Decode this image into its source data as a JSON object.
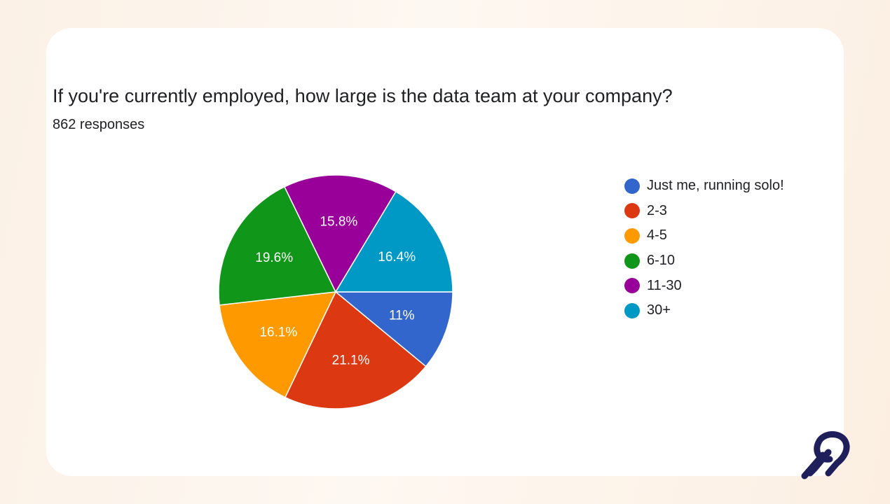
{
  "header": {
    "question": "If you're currently employed, how large is the data team at your company?",
    "responses": "862 responses"
  },
  "chart_data": {
    "type": "pie",
    "title": "If you're currently employed, how large is the data team at your company?",
    "subtitle": "862 responses",
    "legend_position": "right",
    "slices": [
      {
        "label": "Just me, running solo!",
        "value": 11,
        "display": "11%",
        "color": "#3366cc"
      },
      {
        "label": "2-3",
        "value": 21.1,
        "display": "21.1%",
        "color": "#dc3912"
      },
      {
        "label": "4-5",
        "value": 16.1,
        "display": "16.1%",
        "color": "#ff9900"
      },
      {
        "label": "6-10",
        "value": 19.6,
        "display": "19.6%",
        "color": "#109618"
      },
      {
        "label": "11-30",
        "value": 15.8,
        "display": "15.8%",
        "color": "#990099"
      },
      {
        "label": "30+",
        "value": 16.4,
        "display": "16.4%",
        "color": "#0099c6"
      }
    ]
  },
  "logo": {
    "icon": "brand-logo-icon",
    "color": "#1f1f5c"
  }
}
